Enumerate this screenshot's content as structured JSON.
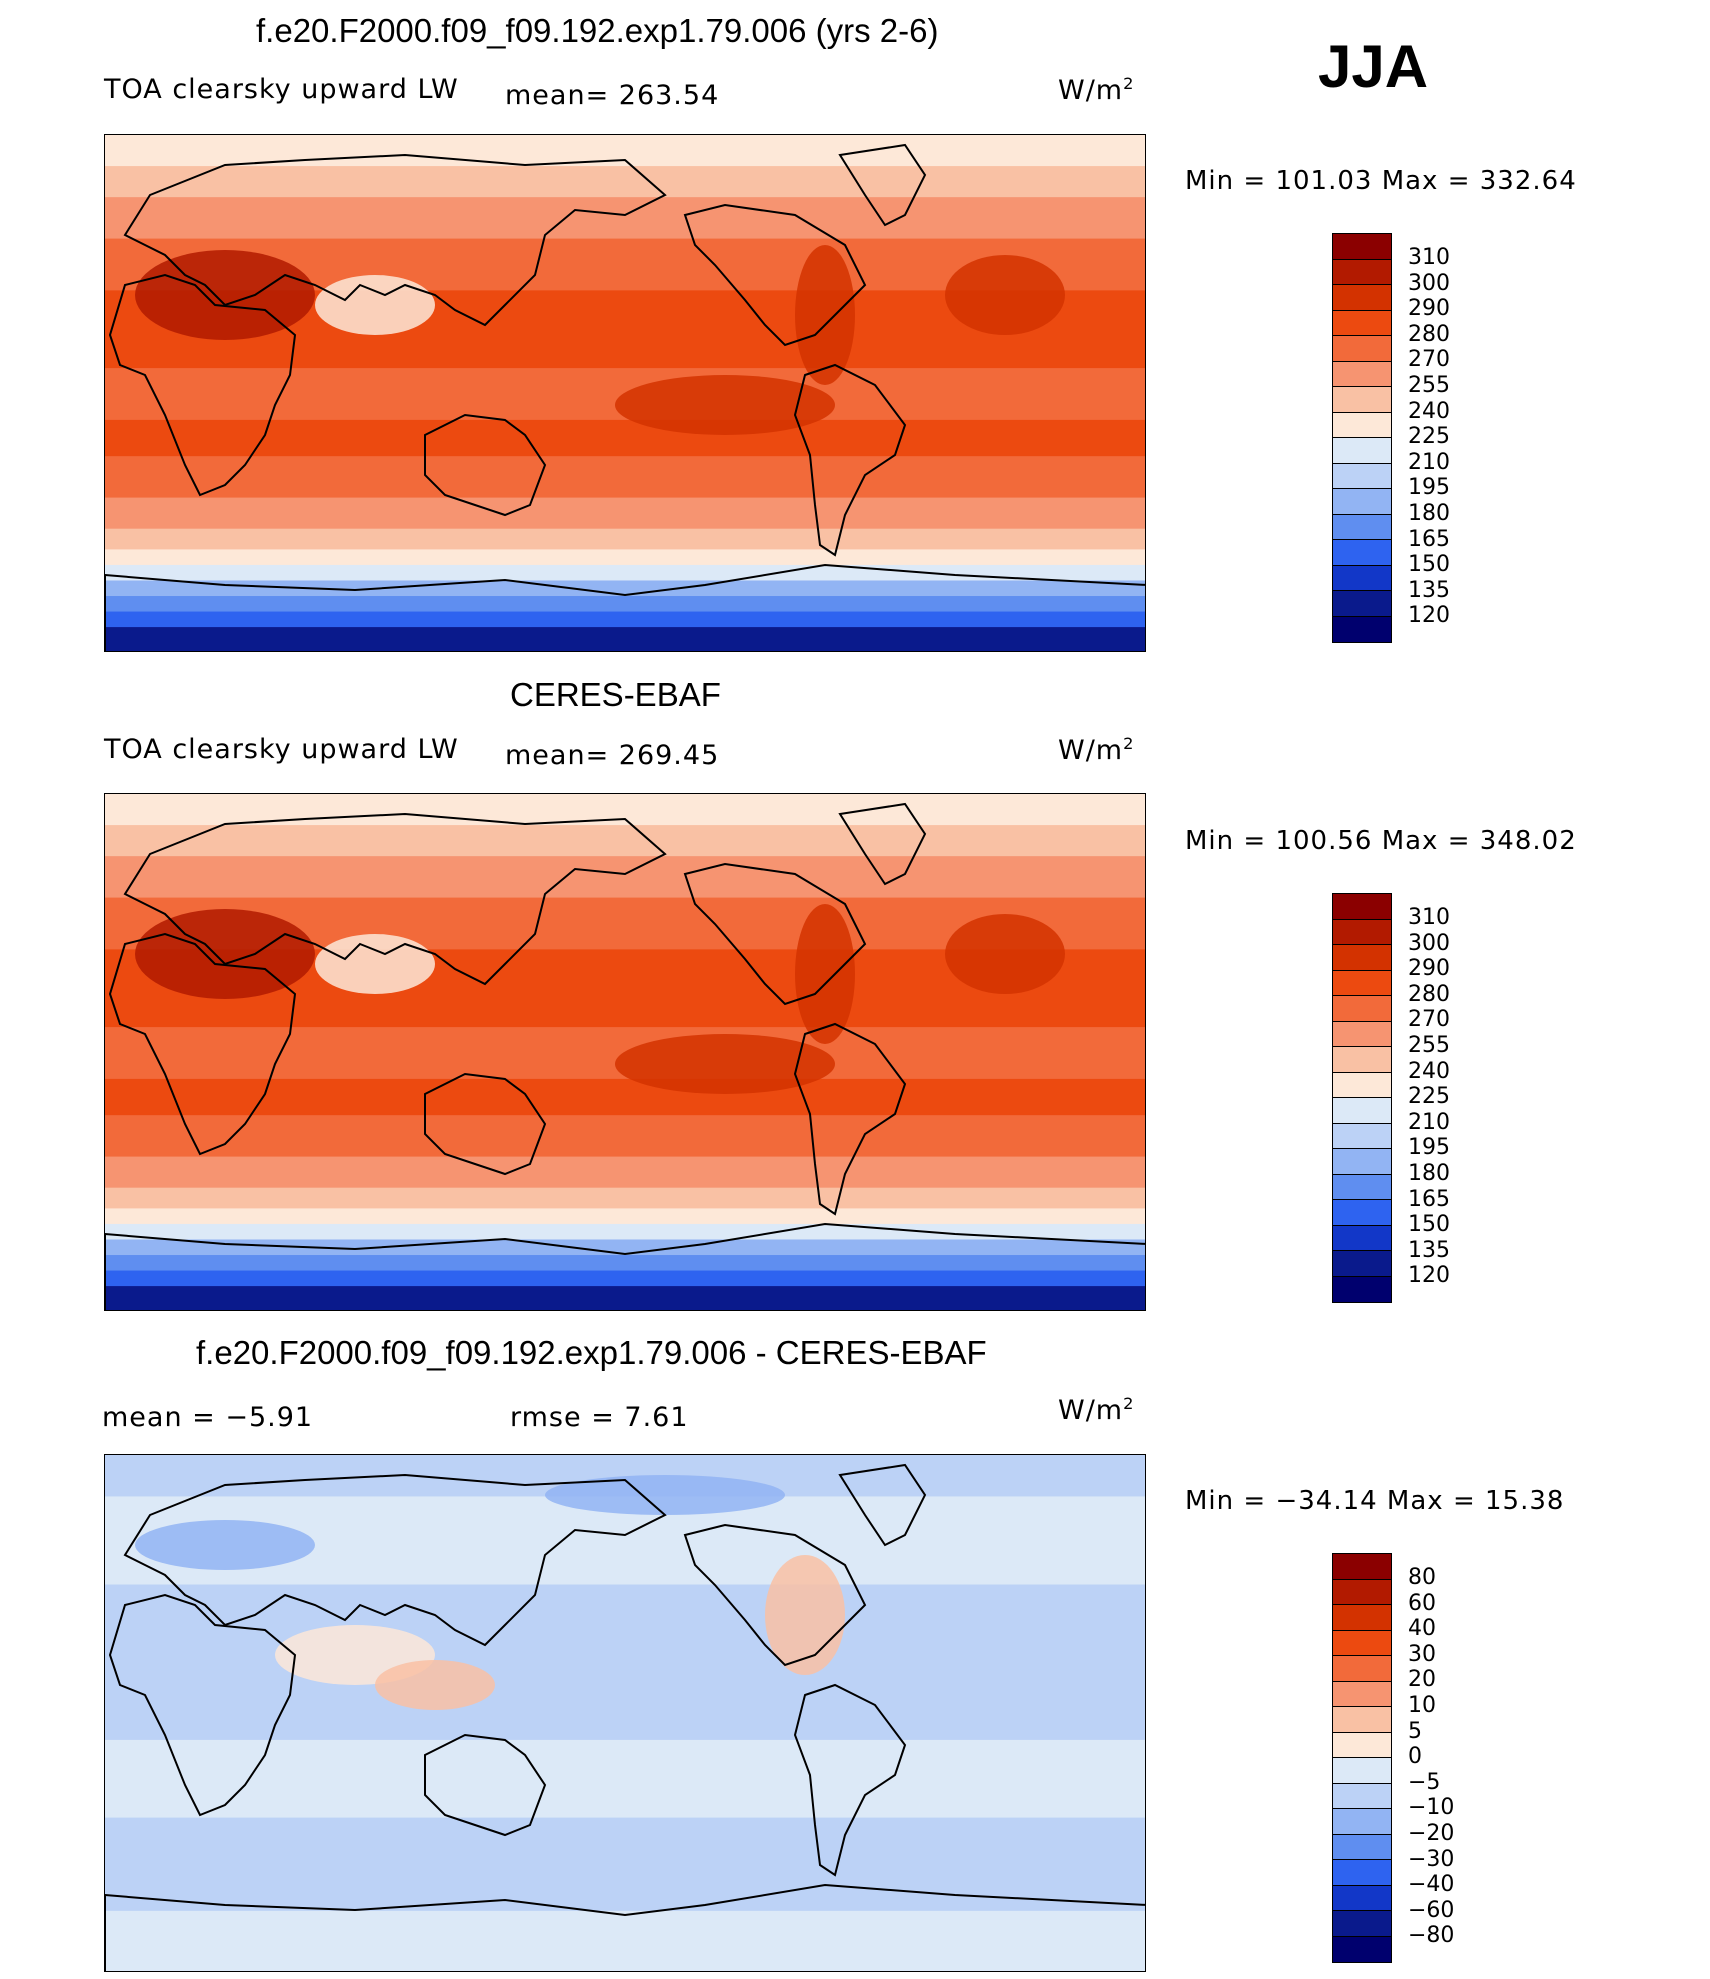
{
  "season": "JJA",
  "units": "W/m",
  "units_sup": "2",
  "panels": [
    {
      "title": "f.e20.F2000.f09_f09.192.exp1.79.006 (yrs 2-6)",
      "left_label": "TOA clearsky upward LW",
      "mean_text": "mean=  263.54",
      "min_max": "Min  =  101.03  Max  =  332.64",
      "map_type": "model",
      "colorbar_labels": [
        "310",
        "300",
        "290",
        "280",
        "270",
        "255",
        "240",
        "225",
        "210",
        "195",
        "180",
        "165",
        "150",
        "135",
        "120"
      ],
      "colorbar_colors": [
        "#8b0000",
        "#b21a00",
        "#d33200",
        "#ec4a10",
        "#f26a3a",
        "#f69471",
        "#f9c1a4",
        "#fde8d8",
        "#dce9f7",
        "#bcd2f6",
        "#92b4f3",
        "#5f8ef0",
        "#2e63f0",
        "#1237c8",
        "#0a1a8c",
        "#00006e"
      ]
    },
    {
      "title": "CERES-EBAF",
      "left_label": "TOA clearsky upward LW",
      "mean_text": "mean=  269.45",
      "min_max": "Min  =  100.56  Max  =  348.02",
      "map_type": "obs",
      "colorbar_labels": [
        "310",
        "300",
        "290",
        "280",
        "270",
        "255",
        "240",
        "225",
        "210",
        "195",
        "180",
        "165",
        "150",
        "135",
        "120"
      ],
      "colorbar_colors": [
        "#8b0000",
        "#b21a00",
        "#d33200",
        "#ec4a10",
        "#f26a3a",
        "#f69471",
        "#f9c1a4",
        "#fde8d8",
        "#dce9f7",
        "#bcd2f6",
        "#92b4f3",
        "#5f8ef0",
        "#2e63f0",
        "#1237c8",
        "#0a1a8c",
        "#00006e"
      ]
    },
    {
      "title": "f.e20.F2000.f09_f09.192.exp1.79.006 - CERES-EBAF",
      "left_label": "mean  =    −5.91",
      "mean_text": "rmse  =     7.61",
      "min_max": "Min  =  −34.14  Max  =    15.38",
      "map_type": "diff",
      "colorbar_labels": [
        "80",
        "60",
        "40",
        "30",
        "20",
        "10",
        "5",
        "0",
        "−5",
        "−10",
        "−20",
        "−30",
        "−40",
        "−60",
        "−80"
      ],
      "colorbar_colors": [
        "#8b0000",
        "#b21a00",
        "#d33200",
        "#ec4a10",
        "#f26a3a",
        "#f69471",
        "#f9c1a4",
        "#fde8d8",
        "#dce9f7",
        "#bcd2f6",
        "#92b4f3",
        "#5f8ef0",
        "#2e63f0",
        "#1237c8",
        "#0a1a8c",
        "#00006e"
      ]
    }
  ]
}
